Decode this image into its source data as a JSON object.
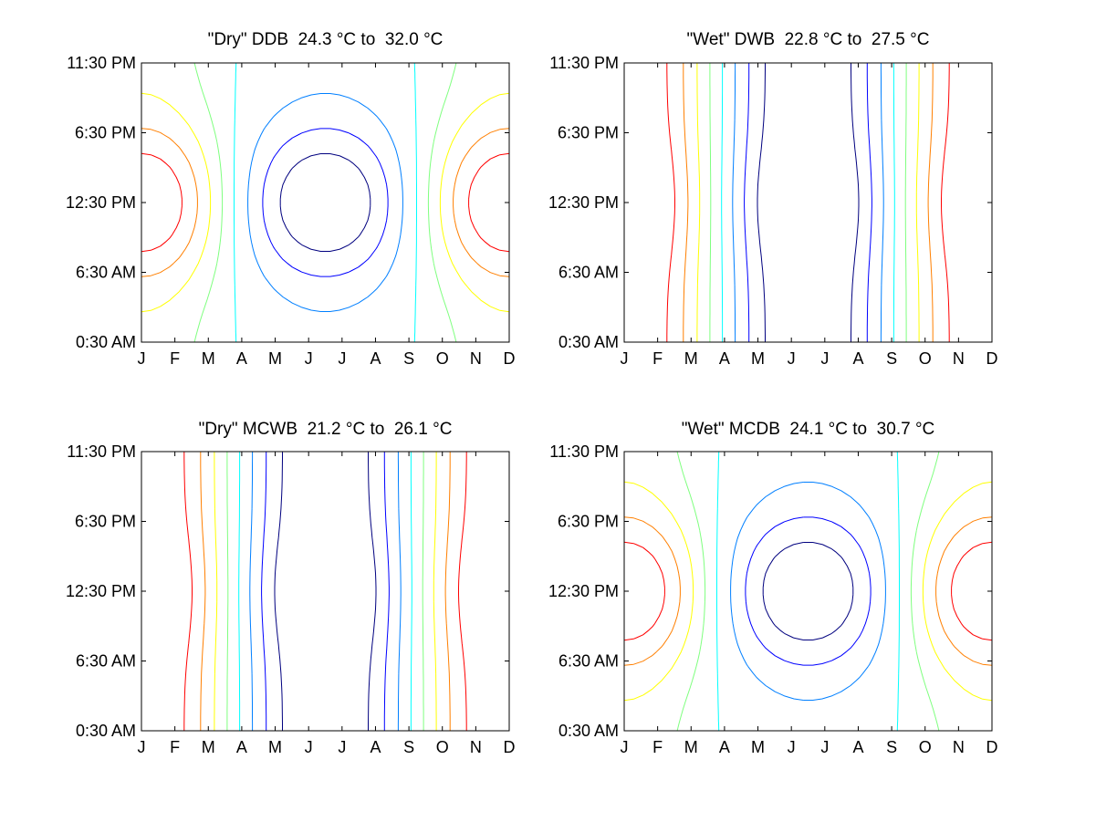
{
  "chart_data": [
    {
      "type": "contour",
      "title": "\"Dry\" DDB  24.3 °C to  32.0 °C",
      "x_ticks": [
        "J",
        "F",
        "M",
        "A",
        "M",
        "J",
        "J",
        "A",
        "S",
        "O",
        "N",
        "D"
      ],
      "y_ticks": [
        "0:30 AM",
        "6:30 AM",
        "12:30 PM",
        "6:30 PM",
        "11:30 PM"
      ],
      "zrange": [
        24.3,
        32.0
      ],
      "shape": "hot-midday",
      "colors": [
        "#00007f",
        "#0000ff",
        "#007fff",
        "#00ffff",
        "#7fff7f",
        "#ffff00",
        "#ff7f00",
        "#ff0000"
      ]
    },
    {
      "type": "contour",
      "title": "\"Wet\" DWB  22.8 °C to  27.5 °C",
      "x_ticks": [
        "J",
        "F",
        "M",
        "A",
        "M",
        "J",
        "J",
        "A",
        "S",
        "O",
        "N",
        "D"
      ],
      "y_ticks": [
        "0:30 AM",
        "6:30 AM",
        "12:30 PM",
        "6:30 PM",
        "11:30 PM"
      ],
      "zrange": [
        22.8,
        27.5
      ],
      "shape": "vertical-bands",
      "colors": [
        "#00007f",
        "#0000ff",
        "#007fff",
        "#00ffff",
        "#7fff7f",
        "#ffff00",
        "#ff7f00",
        "#ff0000"
      ]
    },
    {
      "type": "contour",
      "title": "\"Dry\" MCWB  21.2 °C to  26.1 °C",
      "x_ticks": [
        "J",
        "F",
        "M",
        "A",
        "M",
        "J",
        "J",
        "A",
        "S",
        "O",
        "N",
        "D"
      ],
      "y_ticks": [
        "0:30 AM",
        "6:30 AM",
        "12:30 PM",
        "6:30 PM",
        "11:30 PM"
      ],
      "zrange": [
        21.2,
        26.1
      ],
      "shape": "vertical-bands",
      "colors": [
        "#00007f",
        "#0000ff",
        "#007fff",
        "#00ffff",
        "#7fff7f",
        "#ffff00",
        "#ff7f00",
        "#ff0000"
      ]
    },
    {
      "type": "contour",
      "title": "\"Wet\" MCDB  24.1 °C to  30.7 °C",
      "x_ticks": [
        "J",
        "F",
        "M",
        "A",
        "M",
        "J",
        "J",
        "A",
        "S",
        "O",
        "N",
        "D"
      ],
      "y_ticks": [
        "0:30 AM",
        "6:30 AM",
        "12:30 PM",
        "6:30 PM",
        "11:30 PM"
      ],
      "zrange": [
        24.1,
        30.7
      ],
      "shape": "hot-midday",
      "colors": [
        "#00007f",
        "#0000ff",
        "#007fff",
        "#00ffff",
        "#7fff7f",
        "#ffff00",
        "#ff7f00",
        "#ff0000"
      ]
    }
  ]
}
